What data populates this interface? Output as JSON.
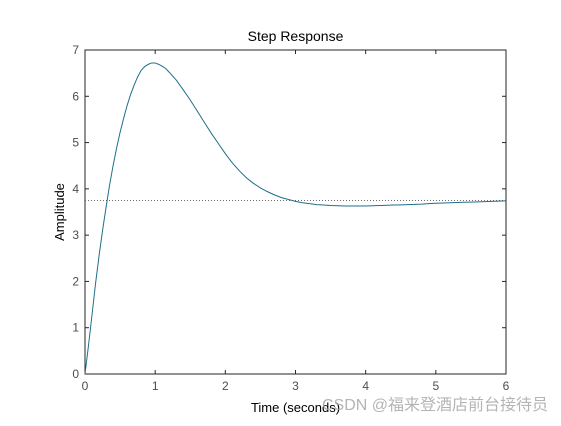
{
  "chart_data": {
    "type": "line",
    "title": "Step Response",
    "xlabel": "Time (seconds)",
    "ylabel": "Amplitude",
    "xlim": [
      0,
      6
    ],
    "ylim": [
      0,
      7
    ],
    "xticks": [
      "0",
      "1",
      "2",
      "3",
      "4",
      "5",
      "6"
    ],
    "yticks": [
      "0",
      "1",
      "2",
      "3",
      "4",
      "5",
      "6",
      "7"
    ],
    "grid": false,
    "colors": {
      "line": "#1f6f8b",
      "steady_state_line": "#555555",
      "axes": "#262626"
    },
    "steady_state": 3.75,
    "series": [
      {
        "x": [
          0,
          0.05,
          0.1,
          0.15,
          0.2,
          0.25,
          0.3,
          0.35,
          0.4,
          0.45,
          0.5,
          0.55,
          0.6,
          0.65,
          0.7,
          0.75,
          0.8,
          0.85,
          0.9,
          0.95,
          1.0,
          1.05,
          1.1,
          1.15,
          1.2,
          1.3,
          1.4,
          1.5,
          1.6,
          1.7,
          1.8,
          1.9,
          2.0,
          2.1,
          2.2,
          2.3,
          2.4,
          2.5,
          2.6,
          2.7,
          2.8,
          2.9,
          3.0,
          3.1,
          3.2,
          3.3,
          3.4,
          3.5,
          3.6,
          3.7,
          3.8,
          3.9,
          4.0,
          4.1,
          4.2,
          4.3,
          4.4,
          4.5,
          4.6,
          4.7,
          4.8,
          4.9,
          5.0,
          5.2,
          5.4,
          5.6,
          5.8,
          6.0
        ],
        "y": [
          0,
          0.62,
          1.28,
          1.95,
          2.55,
          3.1,
          3.6,
          4.08,
          4.5,
          4.88,
          5.22,
          5.52,
          5.8,
          6.04,
          6.24,
          6.42,
          6.56,
          6.64,
          6.69,
          6.72,
          6.72,
          6.69,
          6.65,
          6.6,
          6.52,
          6.35,
          6.14,
          5.92,
          5.68,
          5.44,
          5.2,
          4.98,
          4.76,
          4.56,
          4.39,
          4.24,
          4.12,
          4.02,
          3.94,
          3.87,
          3.81,
          3.77,
          3.73,
          3.7,
          3.68,
          3.66,
          3.65,
          3.64,
          3.635,
          3.63,
          3.63,
          3.63,
          3.63,
          3.635,
          3.64,
          3.645,
          3.65,
          3.655,
          3.66,
          3.665,
          3.67,
          3.68,
          3.69,
          3.7,
          3.71,
          3.72,
          3.73,
          3.74
        ]
      }
    ]
  },
  "watermark": "CSDN @福来登酒店前台接待员"
}
